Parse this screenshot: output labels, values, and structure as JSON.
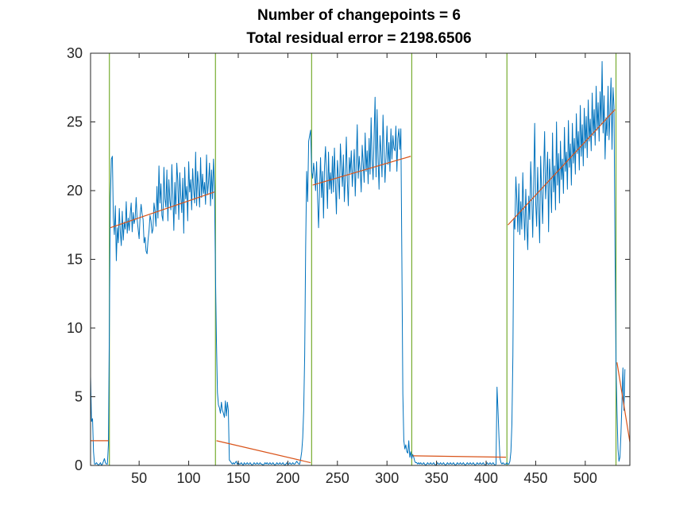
{
  "chart_data": {
    "type": "line",
    "title": "Number of changepoints = 6",
    "subtitle": "Total residual error = 2198.6506",
    "xlabel": "",
    "ylabel": "",
    "xlim": [
      1,
      545
    ],
    "ylim": [
      0,
      30
    ],
    "grid": false,
    "xticks": [
      50,
      100,
      150,
      200,
      250,
      300,
      350,
      400,
      450,
      500
    ],
    "yticks": [
      0,
      5,
      10,
      15,
      20,
      25,
      30
    ],
    "colors": {
      "signal": "#0072BD",
      "fit": "#D95319",
      "changepoint": "#77AC30",
      "axes": "#262626"
    },
    "changepoints": [
      20,
      127,
      224,
      325,
      421,
      531
    ],
    "segments": [
      {
        "x": [
          1,
          19
        ],
        "y": [
          1.8,
          1.8
        ]
      },
      {
        "x": [
          21,
          126
        ],
        "y": [
          17.3,
          19.9
        ]
      },
      {
        "x": [
          128,
          223
        ],
        "y": [
          1.8,
          0.2
        ]
      },
      {
        "x": [
          225,
          324
        ],
        "y": [
          20.4,
          22.5
        ]
      },
      {
        "x": [
          326,
          420
        ],
        "y": [
          0.7,
          0.6
        ]
      },
      {
        "x": [
          422,
          530
        ],
        "y": [
          17.5,
          25.9
        ]
      },
      {
        "x": [
          532,
          545
        ],
        "y": [
          7.5,
          1.7
        ]
      }
    ],
    "series": [
      {
        "name": "signal",
        "x_start": 1,
        "values": [
          6.5,
          3.2,
          3.4,
          1.0,
          0.1,
          0.1,
          0.2,
          0.1,
          0.0,
          0.1,
          0.2,
          0.0,
          0.1,
          0.3,
          0.5,
          0.2,
          0.1,
          0.1,
          1.5,
          10.2,
          19.5,
          22.3,
          22.5,
          18.0,
          16.8,
          18.9,
          14.9,
          17.3,
          16.2,
          18.7,
          17.0,
          16.0,
          18.5,
          16.4,
          17.7,
          17.2,
          19.2,
          16.9,
          18.0,
          17.1,
          18.3,
          19.1,
          17.0,
          18.4,
          17.6,
          18.0,
          19.5,
          17.9,
          17.2,
          16.5,
          18.2,
          19.0,
          18.3,
          17.9,
          16.2,
          16.6,
          15.6,
          15.4,
          16.4,
          17.1,
          18.2,
          17.8,
          16.9,
          17.2,
          19.1,
          18.5,
          17.4,
          20.3,
          18.0,
          21.8,
          19.1,
          20.5,
          18.2,
          17.8,
          21.7,
          19.4,
          18.8,
          21.5,
          17.8,
          20.8,
          19.3,
          18.6,
          21.9,
          19.7,
          17.1,
          20.6,
          18.3,
          22.0,
          20.7,
          17.9,
          21.3,
          19.6,
          18.4,
          20.9,
          16.9,
          21.7,
          19.4,
          20.3,
          17.8,
          22.1,
          19.9,
          20.8,
          18.6,
          21.6,
          20.1,
          19.1,
          22.8,
          18.9,
          21.4,
          20.3,
          18.8,
          22.4,
          19.5,
          21.2,
          19.8,
          20.6,
          19.0,
          22.6,
          19.7,
          20.6,
          22.0,
          18.9,
          21.5,
          19.4,
          22.3,
          20.2,
          14.0,
          9.0,
          5.3,
          4.4,
          4.2,
          3.8,
          4.6,
          4.0,
          3.8,
          3.5,
          4.7,
          3.6,
          4.6,
          4.0,
          0.4,
          0.3,
          0.2,
          0.1,
          0.2,
          0.1,
          0.2,
          0.3,
          0.1,
          0.2,
          0.1,
          0.1,
          0.2,
          0.1,
          0.0,
          0.2,
          0.1,
          0.1,
          0.2,
          0.1,
          0.1,
          0.2,
          0.1,
          0.0,
          0.1,
          0.2,
          0.1,
          0.1,
          0.2,
          0.1,
          0.1,
          0.2,
          0.1,
          0.1,
          0.0,
          0.1,
          0.2,
          0.1,
          0.2,
          0.1,
          0.1,
          0.2,
          0.1,
          0.1,
          0.2,
          0.1,
          0.0,
          0.1,
          0.2,
          0.1,
          0.1,
          0.2,
          0.1,
          0.1,
          0.2,
          0.1,
          0.0,
          0.1,
          0.2,
          0.1,
          0.1,
          0.2,
          0.1,
          0.1,
          0.2,
          0.1,
          0.1,
          0.2,
          0.3,
          0.2,
          0.1,
          0.1,
          0.5,
          1.0,
          2.0,
          4.0,
          8.0,
          16.0,
          21.4,
          19.2,
          23.6,
          24.0,
          24.4,
          21.4,
          20.9,
          22.0,
          21.2,
          20.0,
          22.1,
          19.5,
          17.3,
          20.1,
          22.4,
          19.5,
          21.4,
          18.0,
          21.8,
          23.2,
          21.1,
          18.7,
          22.8,
          20.1,
          21.3,
          19.8,
          22.5,
          19.9,
          23.1,
          20.5,
          18.3,
          22.2,
          21.0,
          19.4,
          23.4,
          21.8,
          20.3,
          22.6,
          19.2,
          21.0,
          23.9,
          20.7,
          18.9,
          22.4,
          21.3,
          22.9,
          20.3,
          21.6,
          23.0,
          19.6,
          22.1,
          24.8,
          20.9,
          22.5,
          21.5,
          19.9,
          23.3,
          22.0,
          20.6,
          24.2,
          21.4,
          22.9,
          20.5,
          23.8,
          21.2,
          25.3,
          22.2,
          20.8,
          23.9,
          26.8,
          21.0,
          25.9,
          22.4,
          20.1,
          24.0,
          22.8,
          21.0,
          25.5,
          23.0,
          20.6,
          22.4,
          24.7,
          21.9,
          23.5,
          21.4,
          24.5,
          22.3,
          24.0,
          23.1,
          22.9,
          24.7,
          21.4,
          23.8,
          24.5,
          23.0,
          24.5,
          15.2,
          5.2,
          1.8,
          1.2,
          1.5,
          1.0,
          0.9,
          1.8,
          0.6,
          1.0,
          0.5,
          0.8,
          0.6,
          0.3,
          0.2,
          0.2,
          0.1,
          0.2,
          0.1,
          0.2,
          0.1,
          0.1,
          0.2,
          0.1,
          0.0,
          0.1,
          0.2,
          0.1,
          0.1,
          0.2,
          0.1,
          0.1,
          0.2,
          0.1,
          0.0,
          0.1,
          0.2,
          0.1,
          0.1,
          0.2,
          0.1,
          0.1,
          0.2,
          0.1,
          0.0,
          0.1,
          0.2,
          0.1,
          0.1,
          0.2,
          0.1,
          0.1,
          0.2,
          0.1,
          0.0,
          0.1,
          0.2,
          0.1,
          0.1,
          0.2,
          0.1,
          0.1,
          0.2,
          0.1,
          0.0,
          0.1,
          0.2,
          0.1,
          0.1,
          0.2,
          0.1,
          0.1,
          0.2,
          0.1,
          0.0,
          0.1,
          0.2,
          0.1,
          0.1,
          0.2,
          0.1,
          0.1,
          0.2,
          0.1,
          0.0,
          0.1,
          0.2,
          0.1,
          0.1,
          0.2,
          0.1,
          0.1,
          0.2,
          0.1,
          0.0,
          0.1,
          5.7,
          4.0,
          2.0,
          0.5,
          0.2,
          0.1,
          0.2,
          0.1,
          0.1,
          0.1,
          0.2,
          0.1,
          0.1,
          0.3,
          1.0,
          3.0,
          8.0,
          18.0,
          17.2,
          21.0,
          19.3,
          17.0,
          20.5,
          16.8,
          19.2,
          17.2,
          21.3,
          18.4,
          16.4,
          20.1,
          17.6,
          15.7,
          19.6,
          17.9,
          22.1,
          19.8,
          16.6,
          20.5,
          24.9,
          19.1,
          17.4,
          21.7,
          18.8,
          16.2,
          22.5,
          19.9,
          17.6,
          21.3,
          24.3,
          19.4,
          20.9,
          22.8,
          17.0,
          22.3,
          20.6,
          18.4,
          24.2,
          19.9,
          21.8,
          18.6,
          25.0,
          20.4,
          22.7,
          19.1,
          23.6,
          20.8,
          22.3,
          19.8,
          24.6,
          21.4,
          22.8,
          20.1,
          25.1,
          21.7,
          23.4,
          20.4,
          24.9,
          22.0,
          23.8,
          21.2,
          25.6,
          22.7,
          24.3,
          21.5,
          26.2,
          22.5,
          24.8,
          21.8,
          26.0,
          23.1,
          25.4,
          22.4,
          26.6,
          23.6,
          25.2,
          22.9,
          27.1,
          24.0,
          25.9,
          23.3,
          27.6,
          24.4,
          26.4,
          23.6,
          27.2,
          24.8,
          29.4,
          24.2,
          26.9,
          22.3,
          25.3,
          24.0,
          27.6,
          23.7,
          25.8,
          28.2,
          23.0,
          27.5,
          26.1,
          16.0,
          7.5,
          4.0,
          1.2,
          0.3,
          0.6,
          2.3,
          4.5,
          7.1,
          4.0,
          7.0
        ]
      }
    ]
  }
}
